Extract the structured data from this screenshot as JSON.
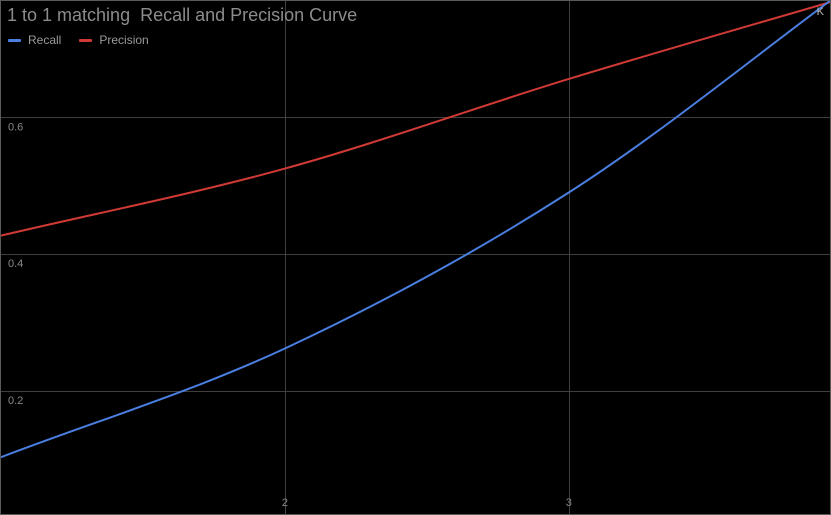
{
  "chart_data": {
    "type": "line",
    "title": "1 to 1 matching  Recall and Precision Curve",
    "xlabel": "K",
    "ylabel": "",
    "x": [
      1,
      2,
      3,
      4
    ],
    "xlim": [
      1,
      3.92
    ],
    "ylim": [
      0.02,
      0.77
    ],
    "x_ticks": [
      2,
      3
    ],
    "y_ticks": [
      0.2,
      0.4,
      0.6
    ],
    "x_tick_labels": [
      "2",
      "3"
    ],
    "y_tick_labels": [
      "0.2",
      "0.4",
      "0.6"
    ],
    "grid": true,
    "legend_position": "top-left",
    "series": [
      {
        "name": "Recall",
        "color": "#4a7fe0",
        "values": [
          0.103,
          0.262,
          0.49,
          0.795
        ]
      },
      {
        "name": "Precision",
        "color": "#d03a35",
        "values": [
          0.427,
          0.525,
          0.656,
          0.778
        ]
      }
    ]
  }
}
